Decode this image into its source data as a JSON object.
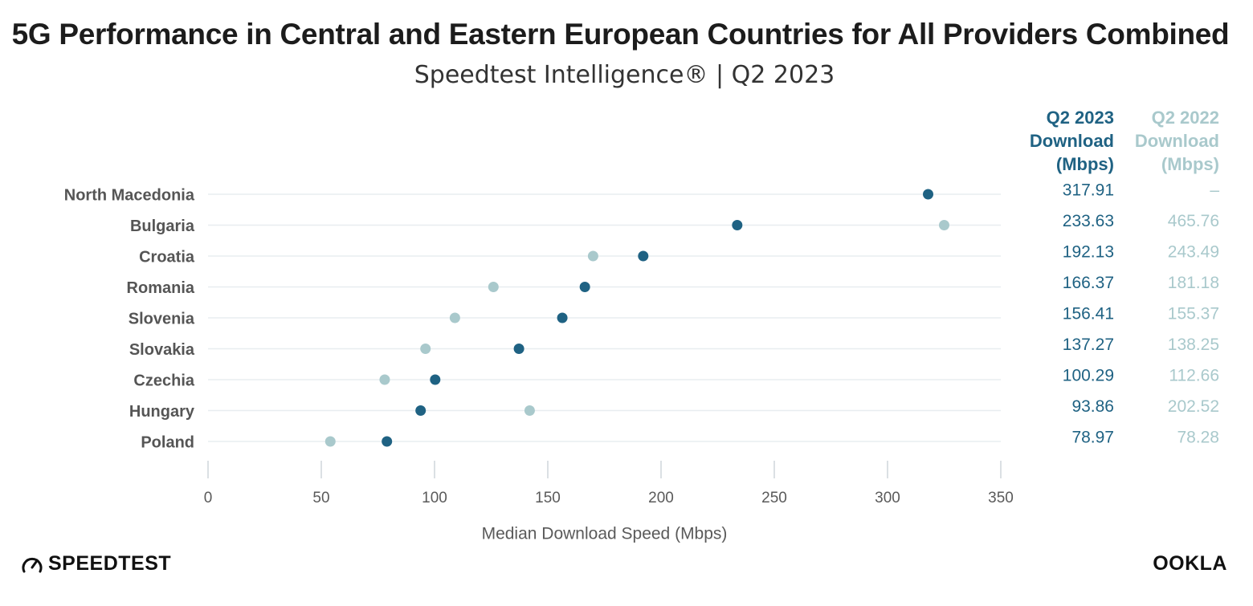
{
  "title": "5G Performance in Central and Eastern European Countries for All Providers Combined",
  "subtitle": "Speedtest Intelligence® | Q2 2023",
  "colors": {
    "q2_2023": "#1f6283",
    "q2_2022": "#a9c9cc",
    "grid": "#e8edf0",
    "label": "#555555",
    "axis_text": "#5a5a5a"
  },
  "brand": {
    "left": "SPEEDTEST",
    "right": "OOKLA",
    "left_icon": "speedometer-icon"
  },
  "chart_data": {
    "type": "scatter",
    "xlabel": "Median Download Speed (Mbps)",
    "xlim": [
      0,
      350
    ],
    "xticks": [
      0,
      50,
      100,
      150,
      200,
      250,
      300,
      350
    ],
    "grid": true,
    "categories": [
      "North Macedonia",
      "Bulgaria",
      "Croatia",
      "Romania",
      "Slovenia",
      "Slovakia",
      "Czechia",
      "Hungary",
      "Poland"
    ],
    "series": [
      {
        "name": "Q2 2023 Download (Mbps)",
        "header": [
          "Q2 2023",
          "Download",
          "(Mbps)"
        ],
        "values": [
          317.91,
          233.63,
          192.13,
          166.37,
          156.41,
          137.27,
          100.29,
          93.86,
          78.97
        ],
        "labels": [
          "317.91",
          "233.63",
          "192.13",
          "166.37",
          "156.41",
          "137.27",
          "100.29",
          "93.86",
          "78.97"
        ]
      },
      {
        "name": "Q2 2022 Download (Mbps)",
        "header": [
          "Q2 2022",
          "Download",
          "(Mbps)"
        ],
        "values": [
          null,
          465.76,
          243.49,
          181.18,
          155.37,
          138.25,
          112.66,
          202.52,
          78.28
        ],
        "plot_values": [
          null,
          325,
          170,
          126,
          109,
          96,
          78,
          142,
          54
        ],
        "labels": [
          "–",
          "465.76",
          "243.49",
          "181.18",
          "155.37",
          "138.25",
          "112.66",
          "202.52",
          "78.28"
        ]
      }
    ]
  }
}
